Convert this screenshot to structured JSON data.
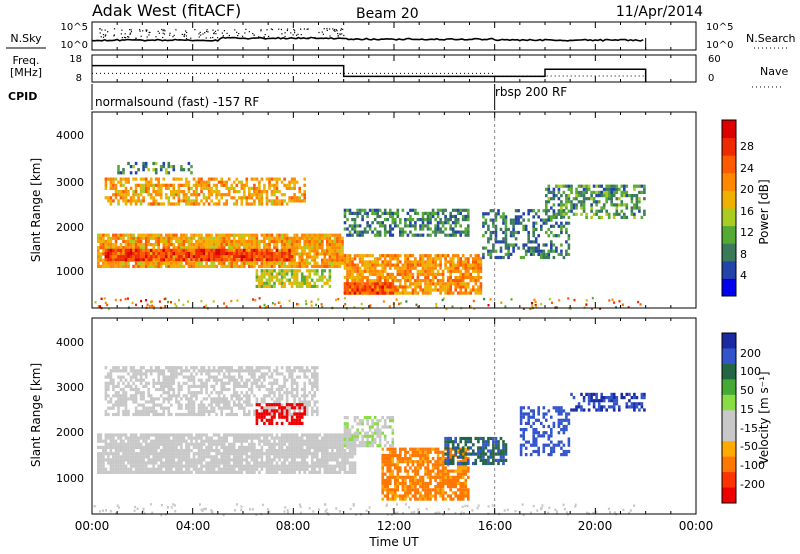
{
  "header": {
    "site": "Adak West (fitACF)",
    "beam": "Beam 20",
    "date": "11/Apr/2014"
  },
  "noise_panel": {
    "left_label": "N.Sky",
    "right_label": "N.Search",
    "left_ticks": [
      "10^5",
      "10^0"
    ],
    "right_ticks": [
      "10^5",
      "10^0"
    ]
  },
  "freq_panel": {
    "left_label_line1": "Freq.",
    "left_label_line2": "[MHz]",
    "right_label": "Nave",
    "left_ticks": [
      "18",
      "8"
    ],
    "right_ticks": [
      "60",
      "0"
    ]
  },
  "cpid": {
    "label": "CPID",
    "programs": [
      {
        "name": "normalsound (fast) -157 RF",
        "start_hour": 0,
        "end_hour": 16
      },
      {
        "name": "rbsp 200 RF",
        "start_hour": 16,
        "end_hour": 22
      }
    ]
  },
  "x_axis": {
    "label": "Time UT",
    "ticks": [
      "00:00",
      "04:00",
      "08:00",
      "12:00",
      "16:00",
      "20:00",
      "00:00"
    ],
    "range_hours": [
      0,
      24
    ]
  },
  "power_panel": {
    "ylabel": "Slant Range [km]",
    "yticks": [
      "4000",
      "3000",
      "2000",
      "1000"
    ],
    "cbar_label": "Power [dB]",
    "cbar_ticks": [
      "28",
      "24",
      "20",
      "16",
      "12",
      "8",
      "4"
    ],
    "cbar_colors": [
      "#0000ee",
      "#2244aa",
      "#3a7a5a",
      "#55aa33",
      "#aacc22",
      "#f0b000",
      "#ff8800",
      "#ff5a00",
      "#ee2a00",
      "#dd0000"
    ]
  },
  "velocity_panel": {
    "ylabel": "Slant Range [km]",
    "yticks": [
      "4000",
      "3000",
      "2000",
      "1000"
    ],
    "cbar_label": "Velocity [m s⁻¹]",
    "cbar_ticks": [
      "200",
      "100",
      "50",
      "15",
      "-15",
      "-50",
      "-100",
      "-200"
    ],
    "cbar_colors": [
      "#1a2aa0",
      "#3355cc",
      "#226644",
      "#44aa33",
      "#88dd44",
      "#c8c8c8",
      "#c8c8c8",
      "#ffaa00",
      "#ff7700",
      "#ff3300",
      "#ee0000"
    ]
  },
  "chart_data": {
    "type": "heatmap",
    "x_range_hours": [
      0,
      24
    ],
    "y_range_km": [
      200,
      4600
    ],
    "operation_end_hour": 22,
    "noise_sky_level": 1.3,
    "freq_mhz_segments": [
      {
        "start": 0,
        "end": 10,
        "freq": 16
      },
      {
        "start": 10,
        "end": 18,
        "freq": 10
      },
      {
        "start": 18,
        "end": 22,
        "freq": 14
      }
    ],
    "nave_segments": [
      {
        "start": 0,
        "end": 16,
        "nave": 20
      },
      {
        "start": 16,
        "end": 22,
        "nave": 12
      }
    ],
    "power_db": {
      "range": [
        0,
        30
      ],
      "regions": [
        {
          "start": 0.2,
          "end": 10.0,
          "lo": 1100,
          "hi": 1900,
          "level": 18,
          "density": 0.85
        },
        {
          "start": 0.5,
          "end": 8.0,
          "lo": 1250,
          "hi": 1500,
          "level": 24,
          "density": 0.9
        },
        {
          "start": 0.5,
          "end": 8.5,
          "lo": 2500,
          "hi": 3100,
          "level": 18,
          "density": 0.6
        },
        {
          "start": 1.0,
          "end": 4.0,
          "lo": 3200,
          "hi": 3500,
          "level": 9,
          "density": 0.4
        },
        {
          "start": 6.5,
          "end": 9.5,
          "lo": 650,
          "hi": 1050,
          "level": 14,
          "density": 0.7
        },
        {
          "start": 10.0,
          "end": 15.5,
          "lo": 500,
          "hi": 1400,
          "level": 19,
          "density": 0.8
        },
        {
          "start": 10.0,
          "end": 12.0,
          "lo": 500,
          "hi": 800,
          "level": 24,
          "density": 0.85
        },
        {
          "start": 10.0,
          "end": 15.0,
          "lo": 1800,
          "hi": 2400,
          "level": 8,
          "density": 0.55
        },
        {
          "start": 15.5,
          "end": 19.0,
          "lo": 1300,
          "hi": 2400,
          "level": 7,
          "density": 0.45
        },
        {
          "start": 18.0,
          "end": 22.0,
          "lo": 2200,
          "hi": 3000,
          "level": 9,
          "density": 0.55
        }
      ]
    },
    "velocity_ms": {
      "range": [
        -250,
        250
      ],
      "regions": [
        {
          "start": 0.2,
          "end": 10.5,
          "lo": 1100,
          "hi": 2000,
          "level": 0,
          "density": 0.85
        },
        {
          "start": 0.5,
          "end": 9.0,
          "lo": 2400,
          "hi": 3500,
          "level": 0,
          "density": 0.6
        },
        {
          "start": 6.5,
          "end": 8.5,
          "lo": 2200,
          "hi": 2700,
          "level": -220,
          "density": 0.6
        },
        {
          "start": 10.0,
          "end": 12.0,
          "lo": 1700,
          "hi": 2400,
          "level": 10,
          "density": 0.55
        },
        {
          "start": 11.5,
          "end": 15.0,
          "lo": 500,
          "hi": 1700,
          "level": -60,
          "density": 0.75
        },
        {
          "start": 14.0,
          "end": 16.5,
          "lo": 1300,
          "hi": 1900,
          "level": 70,
          "density": 0.6
        },
        {
          "start": 17.0,
          "end": 19.0,
          "lo": 1500,
          "hi": 2600,
          "level": 110,
          "density": 0.45
        },
        {
          "start": 19.0,
          "end": 22.0,
          "lo": 2500,
          "hi": 2900,
          "level": 150,
          "density": 0.5
        }
      ]
    }
  }
}
